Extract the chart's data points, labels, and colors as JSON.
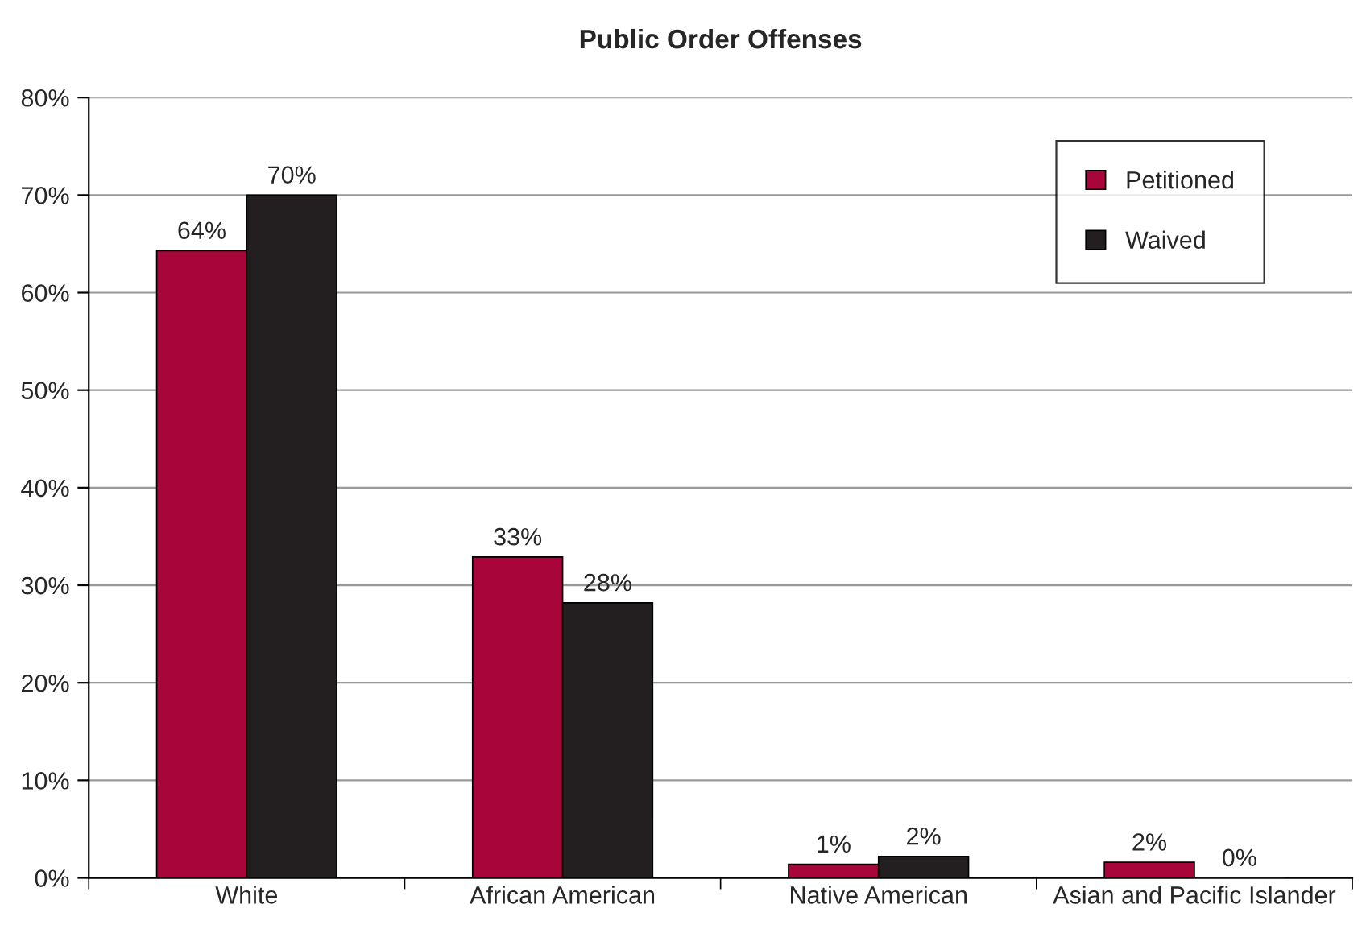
{
  "chart_data": {
    "type": "bar",
    "title": "Public Order Offenses",
    "categories": [
      "White",
      "African American",
      "Native American",
      "Asian and Pacific Islander"
    ],
    "series": [
      {
        "name": "Petitioned",
        "color": "#a8063a",
        "values": [
          64.3,
          32.9,
          1.4,
          1.6
        ],
        "value_labels": [
          "64%",
          "33%",
          "1%",
          "2%"
        ]
      },
      {
        "name": "Waived",
        "color": "#231f20",
        "values": [
          70,
          28.2,
          2.2,
          0
        ],
        "value_labels": [
          "70%",
          "28%",
          "2%",
          "0%"
        ]
      }
    ],
    "ylim": [
      0,
      80
    ],
    "yticks": [
      {
        "value": 0,
        "label": "0%"
      },
      {
        "value": 10,
        "label": "10%"
      },
      {
        "value": 20,
        "label": "20%"
      },
      {
        "value": 30,
        "label": "30%"
      },
      {
        "value": 40,
        "label": "40%"
      },
      {
        "value": 50,
        "label": "50%"
      },
      {
        "value": 60,
        "label": "60%"
      },
      {
        "value": 70,
        "label": "70%"
      },
      {
        "value": 80,
        "label": "80%"
      }
    ],
    "grid": "y",
    "legend": "top right"
  }
}
